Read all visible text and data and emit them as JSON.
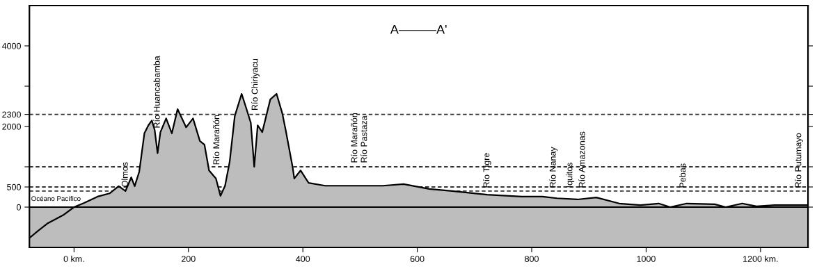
{
  "chart_data": {
    "type": "area",
    "title": "A———A'",
    "x": [
      -78,
      -74,
      -64,
      -47,
      -19,
      0,
      17,
      41,
      62,
      78,
      90,
      100,
      106,
      114,
      123,
      130,
      136,
      141,
      146,
      151,
      161,
      171,
      181,
      196,
      208,
      220,
      228,
      236,
      248,
      256,
      264,
      272,
      281,
      293,
      300,
      309,
      315,
      321,
      329,
      343,
      354,
      364,
      370,
      382,
      385,
      396,
      410,
      439,
      500,
      540,
      576,
      621,
      661,
      722,
      783,
      819,
      844,
      880,
      913,
      953,
      990,
      1022,
      1042,
      1071,
      1120,
      1139,
      1168,
      1193,
      1225,
      1283
    ],
    "series": [
      {
        "color": "#bdbdbd",
        "values": [
          -760,
          -720,
          -600,
          -410,
          -200,
          0,
          100,
          260,
          340,
          520,
          400,
          740,
          520,
          880,
          1830,
          2030,
          2150,
          1910,
          1340,
          1860,
          2200,
          1830,
          2430,
          1980,
          2200,
          1640,
          1550,
          910,
          710,
          280,
          530,
          1120,
          2260,
          2810,
          2500,
          2090,
          1000,
          2030,
          1860,
          2670,
          2810,
          2330,
          1910,
          1000,
          710,
          910,
          600,
          530,
          530,
          530,
          570,
          450,
          400,
          310,
          260,
          260,
          220,
          190,
          240,
          90,
          50,
          90,
          0,
          90,
          70,
          0,
          90,
          20,
          50,
          50
        ]
      }
    ],
    "xlim": [
      -78,
      1283
    ],
    "ylim": [
      -1000,
      5000
    ],
    "xticks": [
      {
        "value": 0,
        "label": "0 km."
      },
      200,
      400,
      600,
      800,
      1000,
      {
        "value": 1200,
        "label": "1200 km."
      }
    ],
    "yticks": [
      0,
      500,
      {
        "value": 1000,
        "label": null
      },
      2000,
      2300,
      {
        "value": 3000,
        "label": null
      },
      4000
    ],
    "bands": [
      {
        "axis": "y",
        "from": -1000,
        "to": 0,
        "color": "#bdbdbd"
      }
    ],
    "ref_lines": [
      {
        "axis": "y",
        "value": 0,
        "color": "#000000",
        "line_style": "solid"
      },
      {
        "axis": "y",
        "value": 2300,
        "color": "#333333",
        "line_style": "dashed"
      },
      {
        "axis": "y",
        "value": 500,
        "color": "#333333",
        "line_style": "dashed"
      },
      {
        "axis": "y",
        "value": 1000,
        "color": "#333333",
        "line_style": "dashed"
      },
      {
        "axis": "y",
        "value": 400,
        "color": "#333333",
        "line_style": "dashed"
      }
    ],
    "annotations": [
      {
        "text": "Océano Pacífico",
        "x": -75,
        "y": 0
      },
      {
        "text": "Olmos",
        "x": 90,
        "y": 400
      },
      {
        "text": "Río Huancabamba",
        "x": 146,
        "y": 1860
      },
      {
        "text": "Río Marañón",
        "x": 250,
        "y": 950
      },
      {
        "text": "Río Chiriyacu",
        "x": 317,
        "y": 2300
      },
      {
        "text": "Río Marañón",
        "x": 491,
        "y": 1000
      },
      {
        "text": "Río Pastaza",
        "x": 508,
        "y": 1000
      },
      {
        "text": "Río Tigre",
        "x": 722,
        "y": 380
      },
      {
        "text": "Río Nanay",
        "x": 838,
        "y": 380
      },
      {
        "text": "Iquitos",
        "x": 867,
        "y": 380
      },
      {
        "text": "Río Amazonas",
        "x": 889,
        "y": 380
      },
      {
        "text": "Pebas",
        "x": 1065,
        "y": 380
      },
      {
        "text": "Río Putumayo",
        "x": 1267,
        "y": 380
      }
    ],
    "grid": false,
    "legend": false
  }
}
